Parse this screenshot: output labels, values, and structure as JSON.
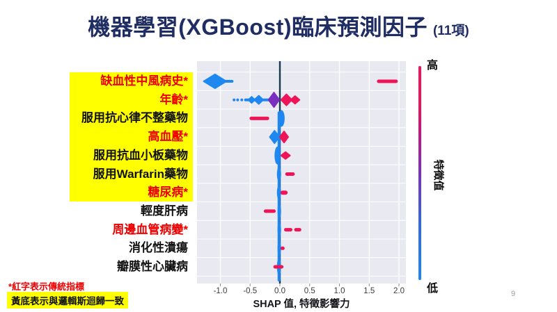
{
  "slide": {
    "title": "機器學習(XGBoost)臨床預測因子",
    "title_suffix": "(11項)",
    "page_number": "9",
    "footnotes": {
      "traditional": "*紅字表示傳統指標",
      "logistic": "黃底表示與邏輯斯迴歸一致"
    }
  },
  "chart_data": {
    "type": "scatter",
    "subtype": "shap-beeswarm-summary",
    "xlabel": "SHAP 值, 特徵影響力",
    "x_ticks": [
      -1.0,
      -0.5,
      0.0,
      0.5,
      1.0,
      1.5,
      2.0
    ],
    "xlim": [
      -1.39,
      2.12
    ],
    "grid": true,
    "zero_line": 0.0,
    "colorbar": {
      "title": "特徵值",
      "high_label": "高",
      "low_label": "低"
    },
    "colors": {
      "low": "#1E87F0",
      "mid": "#7B2FBE",
      "high": "#EE1458",
      "zero_line": "#17394F",
      "plot_bg": "#E9EAF1",
      "grid": "#FFFFFF",
      "highlight_yellow": "#FFFF00",
      "red_text": "#EE0000",
      "title_navy": "#1F2D63"
    },
    "zero_spine": {
      "from_feature": 2,
      "to_feature": 10,
      "x": -0.015,
      "width": 4
    },
    "features": [
      {
        "label": "缺血性中風病史*",
        "traditional_red": true,
        "yellow": true,
        "clusters": [
          {
            "color": "low",
            "shape": "diamond",
            "from": -1.28,
            "to": -0.9,
            "t": 20
          },
          {
            "color": "low",
            "shape": "dash",
            "from": -1.02,
            "to": -0.78,
            "t": 4
          },
          {
            "color": "high",
            "shape": "dash",
            "from": 1.63,
            "to": 1.98,
            "t": 5
          }
        ]
      },
      {
        "label": "年齡*",
        "traditional_red": true,
        "yellow": true,
        "clusters": [
          {
            "color": "low",
            "shape": "dots",
            "at": [
              -0.77,
              -0.71,
              -0.64
            ],
            "t": 4
          },
          {
            "color": "low",
            "shape": "dash",
            "from": -0.6,
            "to": -0.04,
            "t": 4
          },
          {
            "color": "low",
            "shape": "diamond",
            "from": -0.53,
            "to": -0.42,
            "t": 9
          },
          {
            "color": "low",
            "shape": "diamond",
            "from": -0.43,
            "to": -0.28,
            "t": 12
          },
          {
            "color": "mid",
            "shape": "diamond",
            "from": -0.19,
            "to": -0.01,
            "t": 21
          },
          {
            "color": "high",
            "shape": "diamond",
            "from": 0.02,
            "to": 0.2,
            "t": 16
          },
          {
            "color": "high",
            "shape": "diamond",
            "from": 0.18,
            "to": 0.33,
            "t": 11
          }
        ]
      },
      {
        "label": "服用抗心律不整藥物",
        "traditional_red": false,
        "yellow": true,
        "clusters": [
          {
            "color": "high",
            "shape": "dash",
            "from": -0.51,
            "to": -0.18,
            "t": 5
          },
          {
            "color": "low",
            "shape": "vblob",
            "from": -0.03,
            "to": 0.08,
            "t": 24
          }
        ]
      },
      {
        "label": "高血壓*",
        "traditional_red": true,
        "yellow": true,
        "clusters": [
          {
            "color": "low",
            "shape": "diamond",
            "from": -0.17,
            "to": -0.01,
            "t": 18
          },
          {
            "color": "high",
            "shape": "diamond",
            "from": 0.0,
            "to": 0.14,
            "t": 16
          }
        ]
      },
      {
        "label": "服用抗血小板藥物",
        "traditional_red": false,
        "yellow": true,
        "clusters": [
          {
            "color": "low",
            "shape": "vblob",
            "from": -0.09,
            "to": 0.01,
            "t": 26
          },
          {
            "color": "high",
            "shape": "diamond",
            "from": 0.02,
            "to": 0.17,
            "t": 10
          }
        ]
      },
      {
        "label": "服用Warfarin藥物",
        "traditional_red": false,
        "yellow": true,
        "clusters": [
          {
            "color": "low",
            "shape": "vblob",
            "from": -0.05,
            "to": 0.02,
            "t": 20
          },
          {
            "color": "high",
            "shape": "dash",
            "from": 0.09,
            "to": 0.25,
            "t": 5
          }
        ]
      },
      {
        "label": "糖尿病*",
        "traditional_red": true,
        "yellow": true,
        "clusters": [
          {
            "color": "low",
            "shape": "vblob",
            "from": -0.05,
            "to": 0.02,
            "t": 20
          },
          {
            "color": "high",
            "shape": "dash",
            "from": 0.01,
            "to": 0.13,
            "t": 6
          }
        ]
      },
      {
        "label": "輕度肝病",
        "traditional_red": false,
        "yellow": false,
        "clusters": [
          {
            "color": "high",
            "shape": "dash",
            "from": -0.27,
            "to": -0.07,
            "t": 5
          },
          {
            "color": "low",
            "shape": "vblob",
            "from": -0.04,
            "to": 0.02,
            "t": 22
          }
        ]
      },
      {
        "label": "周邊血管病變*",
        "traditional_red": true,
        "yellow": false,
        "clusters": [
          {
            "color": "low",
            "shape": "vblob",
            "from": -0.04,
            "to": 0.02,
            "t": 20
          },
          {
            "color": "high",
            "shape": "dash",
            "from": 0.07,
            "to": 0.21,
            "t": 5
          },
          {
            "color": "high",
            "shape": "dash",
            "from": 0.24,
            "to": 0.36,
            "t": 5
          }
        ]
      },
      {
        "label": "消化性潰瘍",
        "traditional_red": false,
        "yellow": false,
        "clusters": [
          {
            "color": "low",
            "shape": "vblob",
            "from": -0.04,
            "to": 0.02,
            "t": 20
          },
          {
            "color": "high",
            "shape": "dash",
            "from": 0.01,
            "to": 0.08,
            "t": 5
          }
        ]
      },
      {
        "label": "瓣膜性心臟病",
        "traditional_red": false,
        "yellow": false,
        "clusters": [
          {
            "color": "low",
            "shape": "vblob",
            "from": -0.05,
            "to": 0.02,
            "t": 24
          },
          {
            "color": "high",
            "shape": "dash",
            "from": -0.11,
            "to": 0.06,
            "t": 5
          }
        ]
      }
    ]
  }
}
